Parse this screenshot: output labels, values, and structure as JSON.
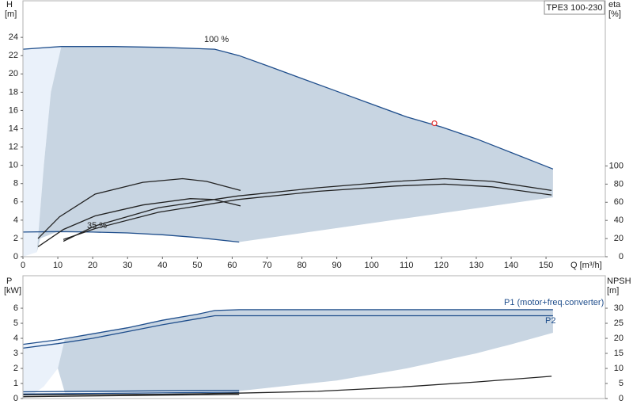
{
  "chart_data": [
    {
      "type": "line",
      "product": "TPE3 100-230",
      "ylabel": "H",
      "yunit": "[m]",
      "y2label": "eta",
      "y2unit": "[%]",
      "xlabel": "Q [m³/h]",
      "xlim": [
        0,
        167
      ],
      "xticks": [
        0,
        10,
        20,
        30,
        40,
        50,
        60,
        70,
        80,
        90,
        100,
        110,
        120,
        130,
        140,
        150
      ],
      "ylim": [
        0,
        28
      ],
      "yticks": [
        0,
        2,
        4,
        6,
        8,
        10,
        12,
        14,
        16,
        18,
        20,
        22,
        24
      ],
      "y2lim": [
        0,
        282
      ],
      "y2ticks": [
        0,
        20,
        40,
        60,
        80,
        100
      ],
      "areas": [
        {
          "color": "#eaf1fa",
          "x": [
            0,
            11,
            8,
            6,
            4,
            0
          ],
          "values": [
            22.7,
            23,
            18,
            10,
            0.5,
            0
          ]
        },
        {
          "color": "#c8d5e2",
          "x": [
            11,
            26,
            40,
            55,
            62,
            70,
            80,
            90,
            100,
            110,
            120,
            130,
            140,
            152,
            152,
            62,
            50,
            40,
            30,
            20,
            10,
            5,
            4,
            6,
            8
          ],
          "values": [
            23,
            23,
            22.9,
            22.7,
            22.0,
            20.9,
            19.5,
            18.1,
            16.7,
            15.3,
            14.2,
            12.9,
            11.4,
            9.6,
            6.5,
            1.6,
            2.1,
            2.4,
            2.6,
            2.7,
            2.75,
            2,
            0.5,
            10,
            18
          ]
        }
      ],
      "series": [
        {
          "name": "100 %",
          "color": "#1f4e8c",
          "x": [
            0,
            11,
            26,
            40,
            55,
            62,
            70,
            80,
            90,
            100,
            110,
            120,
            130,
            140,
            152
          ],
          "values": [
            22.7,
            23,
            23,
            22.9,
            22.7,
            22.0,
            20.9,
            19.5,
            18.1,
            16.7,
            15.3,
            14.2,
            12.9,
            11.4,
            9.6
          ]
        },
        {
          "name": "35 %",
          "color": "#1f4e8c",
          "x": [
            0,
            10,
            20,
            30,
            40,
            50,
            62
          ],
          "values": [
            2.7,
            2.75,
            2.7,
            2.6,
            2.4,
            2.1,
            1.6
          ]
        },
        {
          "axis": "y2",
          "color": "#222222",
          "x": [
            4.3,
            10.5,
            20.7,
            34.4,
            45.8,
            52.6,
            62.4
          ],
          "values": [
            20,
            44,
            69,
            82,
            86,
            83,
            73
          ]
        },
        {
          "axis": "y2",
          "color": "#222222",
          "x": [
            4.3,
            11.6,
            20.7,
            34.4,
            48,
            54.8,
            62.4
          ],
          "values": [
            11,
            30,
            45,
            57,
            64,
            63,
            56
          ]
        },
        {
          "axis": "y2",
          "color": "#222222",
          "x": [
            11.6,
            20.7,
            38.9,
            61.7,
            84.5,
            107.2,
            120.9,
            134.5,
            151.6
          ],
          "values": [
            17,
            34,
            54,
            67,
            76,
            83,
            86,
            83,
            73
          ]
        },
        {
          "axis": "y2",
          "color": "#222222",
          "x": [
            11.6,
            20.7,
            38.9,
            61.7,
            84.5,
            107.2,
            120.9,
            134.5,
            151.6
          ],
          "values": [
            19,
            31,
            49,
            63,
            72,
            78,
            80,
            77,
            68
          ]
        }
      ],
      "duty_point": {
        "x": 118,
        "y": 14.6,
        "color": "#e03030"
      }
    },
    {
      "type": "line",
      "ylabel": "P",
      "yunit": "[kW]",
      "y2label": "NPSH",
      "y2unit": "[m]",
      "xlim": [
        0,
        167
      ],
      "ylim": [
        0,
        8.16
      ],
      "yticks": [
        0,
        1,
        2,
        3,
        4,
        5,
        6
      ],
      "y2lim": [
        0,
        40.8
      ],
      "y2ticks": [
        0,
        5,
        10,
        15,
        20,
        25,
        30
      ],
      "areas": [
        {
          "color": "#eaf1fa",
          "x": [
            0,
            12,
            10,
            6,
            3,
            0
          ],
          "values": [
            3.6,
            3.95,
            2,
            0.8,
            0.3,
            0
          ]
        },
        {
          "color": "#c8d5e2",
          "x": [
            12,
            20,
            30,
            40,
            50,
            55,
            62,
            100,
            152,
            152,
            140,
            130,
            110,
            90,
            62,
            12,
            10
          ],
          "values": [
            3.95,
            4.3,
            4.7,
            5.2,
            5.6,
            5.85,
            5.9,
            5.9,
            5.9,
            4.37,
            3.6,
            3.0,
            2.0,
            1.2,
            0.5,
            0.4,
            2
          ]
        }
      ],
      "series": [
        {
          "name": "P1 (motor+freq.converter)",
          "color": "#1f4e8c",
          "x": [
            0,
            10,
            20,
            30,
            40,
            50,
            55,
            62,
            100,
            152
          ],
          "values": [
            3.6,
            3.9,
            4.3,
            4.7,
            5.2,
            5.6,
            5.85,
            5.9,
            5.9,
            5.9
          ]
        },
        {
          "name": "P2",
          "color": "#1f4e8c",
          "x": [
            0,
            10,
            20,
            30,
            40,
            50,
            55,
            62,
            100,
            152
          ],
          "values": [
            3.35,
            3.65,
            4.0,
            4.45,
            4.9,
            5.3,
            5.5,
            5.5,
            5.5,
            5.5
          ]
        },
        {
          "color": "#1f4e8c",
          "x": [
            0,
            62
          ],
          "values": [
            0.45,
            0.55
          ]
        },
        {
          "color": "#1f4e8c",
          "x": [
            0,
            62
          ],
          "values": [
            0.3,
            0.42
          ]
        },
        {
          "axis": "y2",
          "color": "#222222",
          "x": [
            0,
            62
          ],
          "values": [
            0.6,
            1.4
          ]
        },
        {
          "axis": "y2",
          "color": "#222222",
          "x": [
            0,
            40,
            61.7,
            84.5,
            107.2,
            130,
            151.6
          ],
          "values": [
            1.2,
            1.4,
            1.8,
            2.4,
            3.7,
            5.5,
            7.4
          ]
        }
      ]
    }
  ]
}
